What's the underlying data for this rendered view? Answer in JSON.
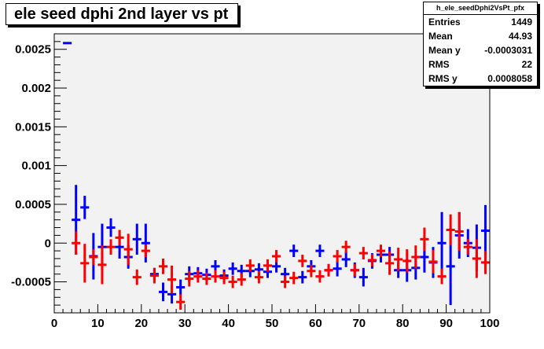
{
  "title": "ele seed dphi 2nd layer vs pt",
  "stats": {
    "name": "h_ele_seedDphi2VsPt_pfx",
    "rows": [
      {
        "label": "Entries",
        "value": "1449"
      },
      {
        "label": "Mean",
        "value": "44.93"
      },
      {
        "label": "Mean y",
        "value": "-0.0003031"
      },
      {
        "label": "RMS",
        "value": "22"
      },
      {
        "label": "RMS y",
        "value": "0.0008058"
      }
    ]
  },
  "colors": {
    "frame_background": "#f2f2f2",
    "series_blue": "#0000ff",
    "series_red": "#ff0000"
  },
  "chart_data": {
    "type": "scatter",
    "title": "ele seed dphi 2nd layer vs pt",
    "xlabel": "",
    "ylabel": "",
    "xlim": [
      0,
      100
    ],
    "ylim": [
      -0.0009,
      0.0027
    ],
    "x_ticks": [
      0,
      10,
      20,
      30,
      40,
      50,
      60,
      70,
      80,
      90,
      100
    ],
    "y_ticks": [
      -0.0005,
      0,
      0.0005,
      0.001,
      0.0015,
      0.002,
      0.0025
    ],
    "y_tick_labels": [
      "-0.0005",
      "0",
      "0.0005",
      "0.001",
      "0.0015",
      "0.002",
      "0.0025"
    ],
    "grid": false,
    "series": [
      {
        "color": "#0000ff",
        "x_halfwidth": 1,
        "points": [
          {
            "x": 3,
            "y": 0.00258,
            "err": 0
          },
          {
            "x": 5,
            "y": 0.0003,
            "err": 0.00045
          },
          {
            "x": 7,
            "y": 0.00046,
            "err": 0.00015
          },
          {
            "x": 9,
            "y": -0.00017,
            "err": 0.0003
          },
          {
            "x": 11,
            "y": -5e-05,
            "err": 0.0003
          },
          {
            "x": 13,
            "y": 0.0002,
            "err": 0.00012
          },
          {
            "x": 15,
            "y": -5e-05,
            "err": 0.00015
          },
          {
            "x": 17,
            "y": -0.00018,
            "err": 0.00015
          },
          {
            "x": 19,
            "y": 5e-05,
            "err": 0.0002
          },
          {
            "x": 21,
            "y": 0.0,
            "err": 0.00025
          },
          {
            "x": 23,
            "y": -0.0004,
            "err": 8e-05
          },
          {
            "x": 25,
            "y": -0.00063,
            "err": 0.00012
          },
          {
            "x": 27,
            "y": -0.00066,
            "err": 0.00012
          },
          {
            "x": 29,
            "y": -0.00057,
            "err": 0.0001
          },
          {
            "x": 31,
            "y": -0.0004,
            "err": 0.0001
          },
          {
            "x": 33,
            "y": -0.00039,
            "err": 8e-05
          },
          {
            "x": 35,
            "y": -0.00041,
            "err": 8e-05
          },
          {
            "x": 37,
            "y": -0.0003,
            "err": 8e-05
          },
          {
            "x": 39,
            "y": -0.00042,
            "err": 8e-05
          },
          {
            "x": 41,
            "y": -0.00033,
            "err": 8e-05
          },
          {
            "x": 43,
            "y": -0.00036,
            "err": 8e-05
          },
          {
            "x": 45,
            "y": -0.00036,
            "err": 8e-05
          },
          {
            "x": 47,
            "y": -0.00034,
            "err": 8e-05
          },
          {
            "x": 49,
            "y": -0.00037,
            "err": 8e-05
          },
          {
            "x": 51,
            "y": -0.0003,
            "err": 8e-05
          },
          {
            "x": 53,
            "y": -0.0004,
            "err": 8e-05
          },
          {
            "x": 55,
            "y": -0.0001,
            "err": 8e-05
          },
          {
            "x": 57,
            "y": -0.00044,
            "err": 8e-05
          },
          {
            "x": 59,
            "y": -0.0003,
            "err": 8e-05
          },
          {
            "x": 61,
            "y": -0.0001,
            "err": 8e-05
          },
          {
            "x": 63,
            "y": -0.00035,
            "err": 8e-05
          },
          {
            "x": 65,
            "y": -0.00033,
            "err": 0.0001
          },
          {
            "x": 67,
            "y": -0.00021,
            "err": 0.0001
          },
          {
            "x": 69,
            "y": -0.00035,
            "err": 0.0001
          },
          {
            "x": 71,
            "y": -0.00044,
            "err": 0.00012
          },
          {
            "x": 73,
            "y": -0.00023,
            "err": 0.0001
          },
          {
            "x": 75,
            "y": -0.00015,
            "err": 0.0001
          },
          {
            "x": 77,
            "y": -0.00015,
            "err": 0.0001
          },
          {
            "x": 79,
            "y": -0.00035,
            "err": 0.0001
          },
          {
            "x": 81,
            "y": -0.00035,
            "err": 0.00015
          },
          {
            "x": 83,
            "y": -0.00032,
            "err": 0.00015
          },
          {
            "x": 85,
            "y": -0.00018,
            "err": 0.0002
          },
          {
            "x": 87,
            "y": -0.00025,
            "err": 0.0002
          },
          {
            "x": 89,
            "y": 0.0,
            "err": 0.0004
          },
          {
            "x": 91,
            "y": -0.0003,
            "err": 0.0005
          },
          {
            "x": 93,
            "y": 0.0001,
            "err": 0.0003
          },
          {
            "x": 95,
            "y": 0.0,
            "err": 0.00018
          },
          {
            "x": 97,
            "y": -6e-05,
            "err": 0.0003
          },
          {
            "x": 99,
            "y": 0.00016,
            "err": 0.00033
          }
        ]
      },
      {
        "color": "#ff0000",
        "x_halfwidth": 1,
        "points": [
          {
            "x": 5,
            "y": 0.0,
            "err": 0.00015
          },
          {
            "x": 7,
            "y": -0.00026,
            "err": 0.00025
          },
          {
            "x": 9,
            "y": -0.00018,
            "err": 0.0001
          },
          {
            "x": 11,
            "y": -0.00028,
            "err": 0.00025
          },
          {
            "x": 13,
            "y": -5e-05,
            "err": 0.0001
          },
          {
            "x": 15,
            "y": 7e-05,
            "err": 0.0001
          },
          {
            "x": 17,
            "y": -8e-05,
            "err": 0.0002
          },
          {
            "x": 19,
            "y": -0.00044,
            "err": 0.0001
          },
          {
            "x": 21,
            "y": -0.0001,
            "err": 8e-05
          },
          {
            "x": 23,
            "y": -0.00042,
            "err": 0.0001
          },
          {
            "x": 25,
            "y": -0.0003,
            "err": 0.0001
          },
          {
            "x": 27,
            "y": -0.00047,
            "err": 0.00018
          },
          {
            "x": 29,
            "y": -0.00076,
            "err": 0.0001
          },
          {
            "x": 31,
            "y": -0.00046,
            "err": 0.0001
          },
          {
            "x": 33,
            "y": -0.00043,
            "err": 8e-05
          },
          {
            "x": 35,
            "y": -0.00046,
            "err": 8e-05
          },
          {
            "x": 37,
            "y": -0.00043,
            "err": 8e-05
          },
          {
            "x": 39,
            "y": -0.00045,
            "err": 8e-05
          },
          {
            "x": 41,
            "y": -0.0005,
            "err": 8e-05
          },
          {
            "x": 43,
            "y": -0.00047,
            "err": 8e-05
          },
          {
            "x": 45,
            "y": -0.00029,
            "err": 8e-05
          },
          {
            "x": 47,
            "y": -0.00044,
            "err": 8e-05
          },
          {
            "x": 49,
            "y": -0.00029,
            "err": 8e-05
          },
          {
            "x": 51,
            "y": -0.00017,
            "err": 8e-05
          },
          {
            "x": 53,
            "y": -0.0005,
            "err": 8e-05
          },
          {
            "x": 55,
            "y": -0.00045,
            "err": 8e-05
          },
          {
            "x": 57,
            "y": -0.00023,
            "err": 8e-05
          },
          {
            "x": 59,
            "y": -0.00036,
            "err": 8e-05
          },
          {
            "x": 61,
            "y": -0.00043,
            "err": 8e-05
          },
          {
            "x": 63,
            "y": -0.00035,
            "err": 8e-05
          },
          {
            "x": 65,
            "y": -0.00017,
            "err": 8e-05
          },
          {
            "x": 67,
            "y": -5e-05,
            "err": 8e-05
          },
          {
            "x": 69,
            "y": -0.00035,
            "err": 8e-05
          },
          {
            "x": 71,
            "y": -0.00013,
            "err": 8e-05
          },
          {
            "x": 73,
            "y": -0.00022,
            "err": 8e-05
          },
          {
            "x": 75,
            "y": -0.0001,
            "err": 8e-05
          },
          {
            "x": 77,
            "y": -0.00026,
            "err": 0.00015
          },
          {
            "x": 79,
            "y": -0.00021,
            "err": 0.00015
          },
          {
            "x": 81,
            "y": -0.00023,
            "err": 0.00015
          },
          {
            "x": 83,
            "y": -0.00018,
            "err": 0.00015
          },
          {
            "x": 85,
            "y": 5e-05,
            "err": 0.00015
          },
          {
            "x": 87,
            "y": -0.00024,
            "err": 0.00015
          },
          {
            "x": 89,
            "y": -0.00043,
            "err": 0.0001
          },
          {
            "x": 91,
            "y": 0.00017,
            "err": 0.0002
          },
          {
            "x": 93,
            "y": 0.00015,
            "err": 0.00025
          },
          {
            "x": 95,
            "y": -5e-05,
            "err": 0.0001
          },
          {
            "x": 97,
            "y": -0.0002,
            "err": 0.00025
          },
          {
            "x": 99,
            "y": -0.00025,
            "err": 0.00015
          }
        ]
      }
    ]
  }
}
